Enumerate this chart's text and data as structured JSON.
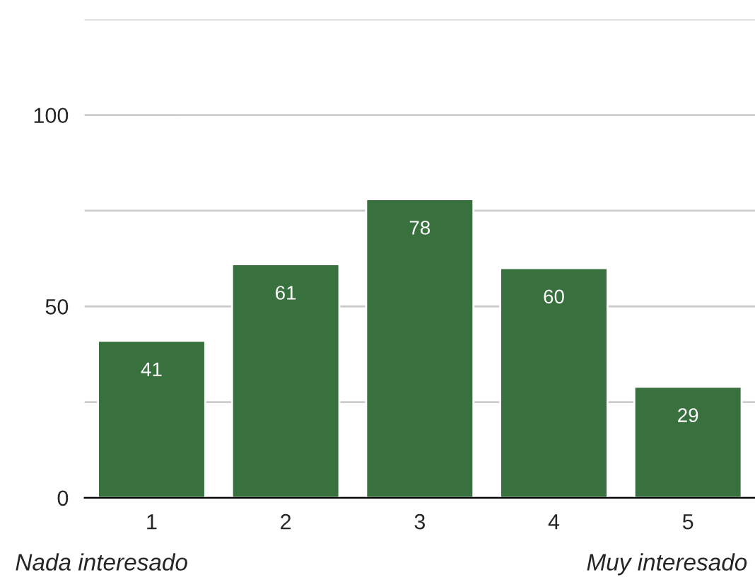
{
  "chart_data": {
    "type": "bar",
    "categories": [
      "1",
      "2",
      "3",
      "4",
      "5"
    ],
    "values": [
      41,
      61,
      78,
      60,
      29
    ],
    "color": "#38713e",
    "data_labels": true,
    "ylim": [
      0,
      125
    ],
    "yticks": [
      0,
      {
        "value": 25,
        "label": null
      },
      50,
      {
        "value": 75,
        "label": null
      },
      100,
      {
        "value": 125,
        "label": null
      }
    ],
    "grid": "y",
    "annotations": [
      "Nada interesado",
      "Muy interesado"
    ]
  }
}
